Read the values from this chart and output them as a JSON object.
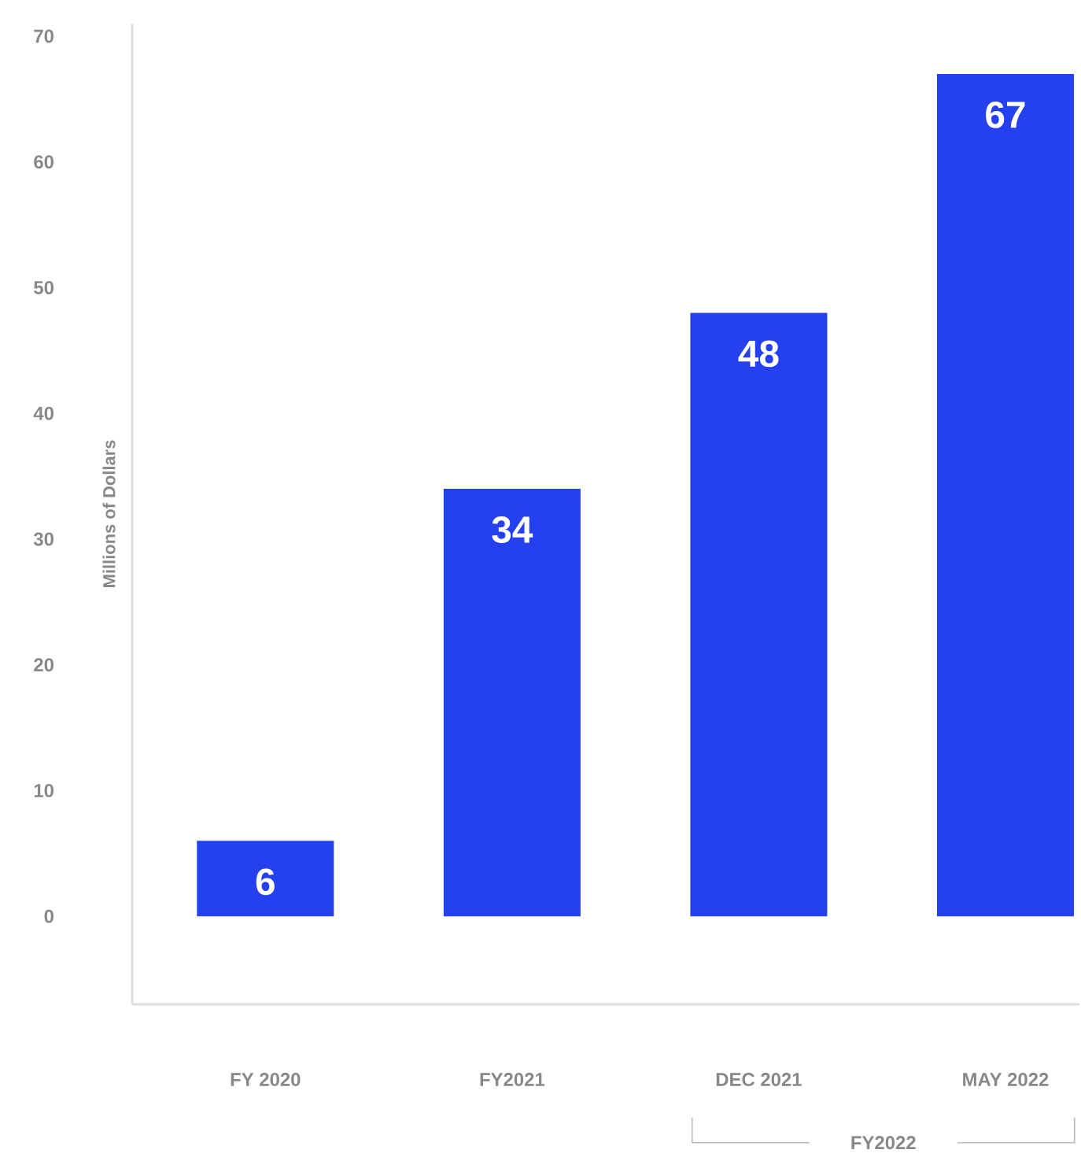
{
  "chart_data": {
    "type": "bar",
    "ylabel": "Millions of Dollars",
    "categories": [
      "FY 2020",
      "FY2021",
      "DEC 2021",
      "MAY 2022"
    ],
    "values": [
      6,
      34,
      48,
      67
    ],
    "color": "#2540ef",
    "data_labels": true,
    "ylim": [
      -7,
      71
    ],
    "yticks": [
      0,
      10,
      20,
      30,
      40,
      50,
      60,
      70
    ],
    "annotations": [
      "FY2022"
    ]
  }
}
